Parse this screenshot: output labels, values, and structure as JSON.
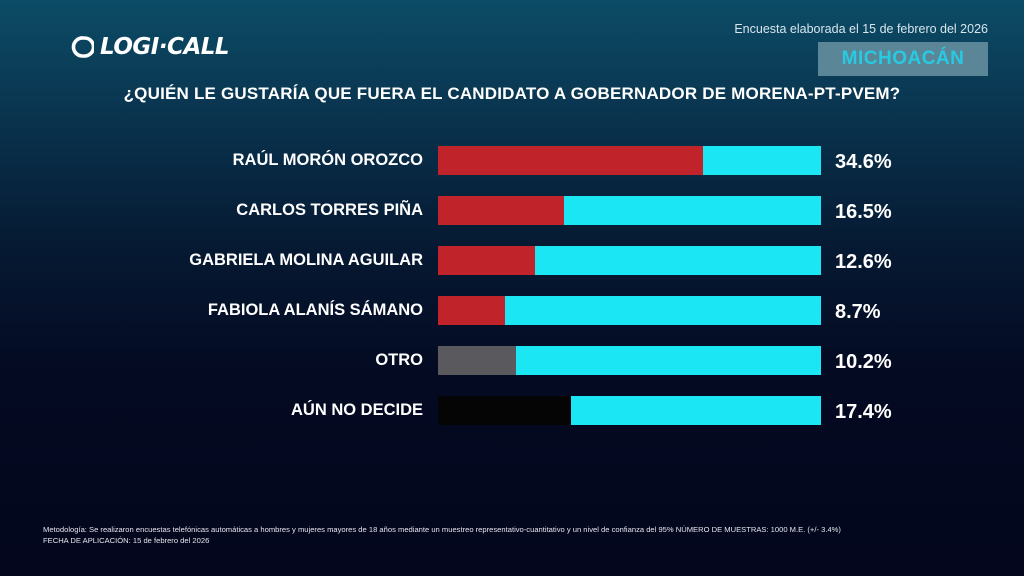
{
  "header": {
    "brand": "LOGI·CALL",
    "logo_icon": "refresh-loop-icon",
    "date_note": "Encuesta elaborada el 15 de febrero del 2026",
    "region": "MICHOACÁN"
  },
  "chart_data": {
    "type": "bar",
    "orientation": "horizontal",
    "title": "¿QUIÉN LE GUSTARÍA QUE FUERA EL CANDIDATO A GOBERNADOR DE MORENA-PT-PVEM?",
    "xlabel": "",
    "ylabel": "",
    "categories": [
      "RAÚL MORÓN OROZCO",
      "CARLOS TORRES PIÑA",
      "GABRIELA MOLINA AGUILAR",
      "FABIOLA ALANÍS SÁMANO",
      "OTRO",
      "AÚN NO DECIDE"
    ],
    "values": [
      34.6,
      16.5,
      12.6,
      8.7,
      10.2,
      17.4
    ],
    "value_labels": [
      "34.6%",
      "16.5%",
      "12.6%",
      "8.7%",
      "10.2%",
      "17.4%"
    ],
    "bar_colors": [
      "#c0242a",
      "#c0242a",
      "#c0242a",
      "#c0242a",
      "#5a5a5e",
      "#050505"
    ],
    "track_color": "#1ae6f4",
    "xlim": [
      0,
      50
    ],
    "grid": false,
    "legend": "none"
  },
  "footer": {
    "methodology": "Metodología: Se realizaron encuestas telefónicas automáticas a hombres y mujeres mayores de 18 años mediante un muestreo representativo-cuantitativo y un nivel de confianza del 95% NÚMERO DE MUESTRAS: 1000 M.E. (+/- 3.4%)",
    "date": "FECHA DE APLICACIÓN: 15 de febrero del 2026"
  }
}
